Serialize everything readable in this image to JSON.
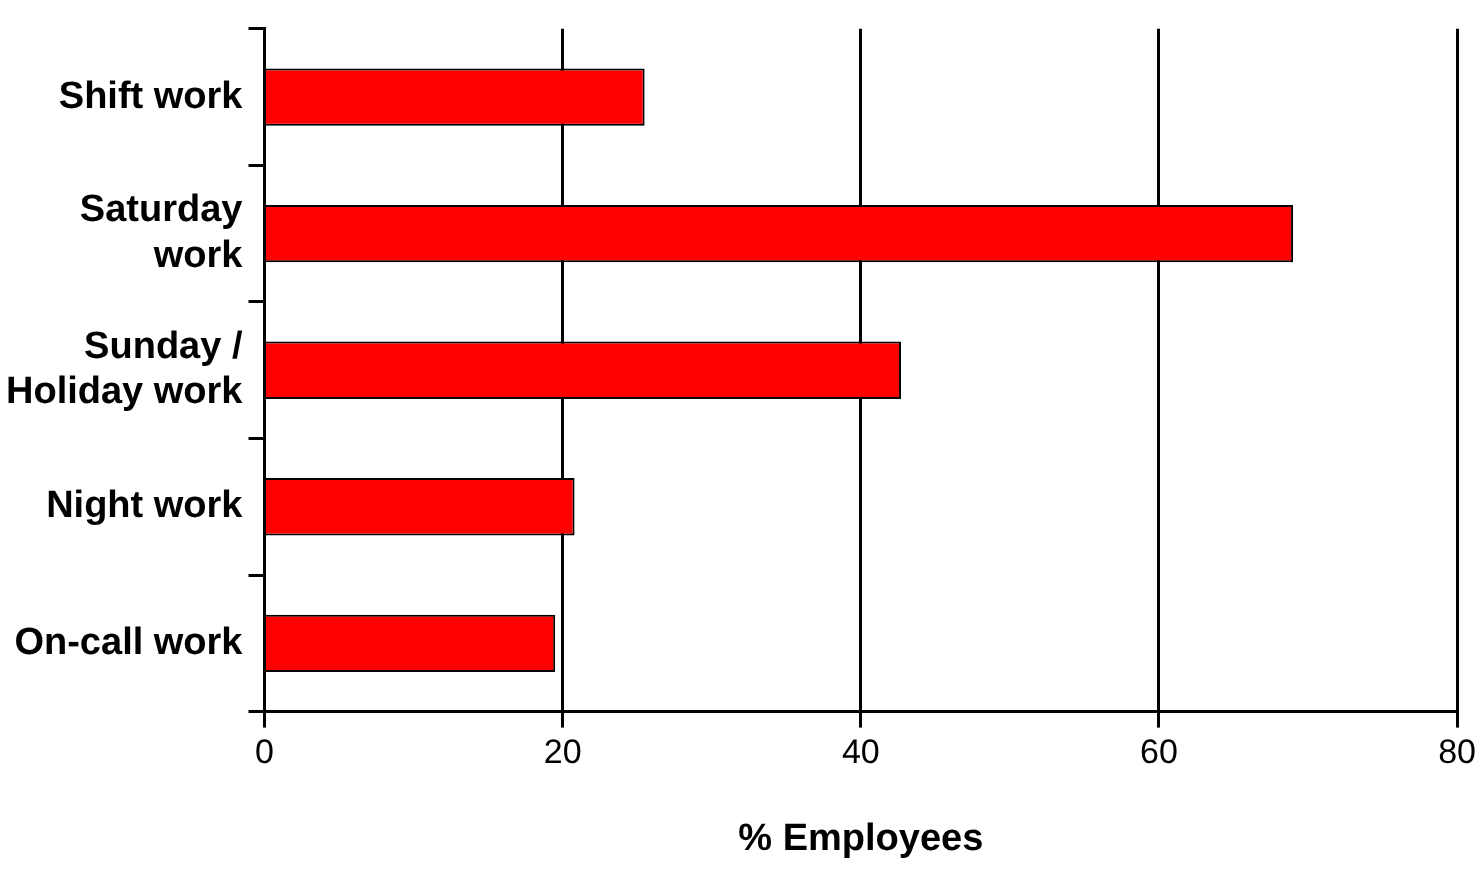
{
  "chart_data": {
    "type": "bar",
    "orientation": "horizontal",
    "xlabel": "% Employees",
    "categories": [
      "Shift work",
      "Saturday\nwork",
      "Sunday /\nHoliday work",
      "Night work",
      "On-call work"
    ],
    "values": [
      25.5,
      69,
      42.7,
      20.8,
      19.5
    ],
    "color": "#ff0000",
    "xlim": [
      0,
      80
    ],
    "xticks": [
      0,
      20,
      40,
      60,
      80
    ],
    "grid": "x",
    "legend": false
  }
}
